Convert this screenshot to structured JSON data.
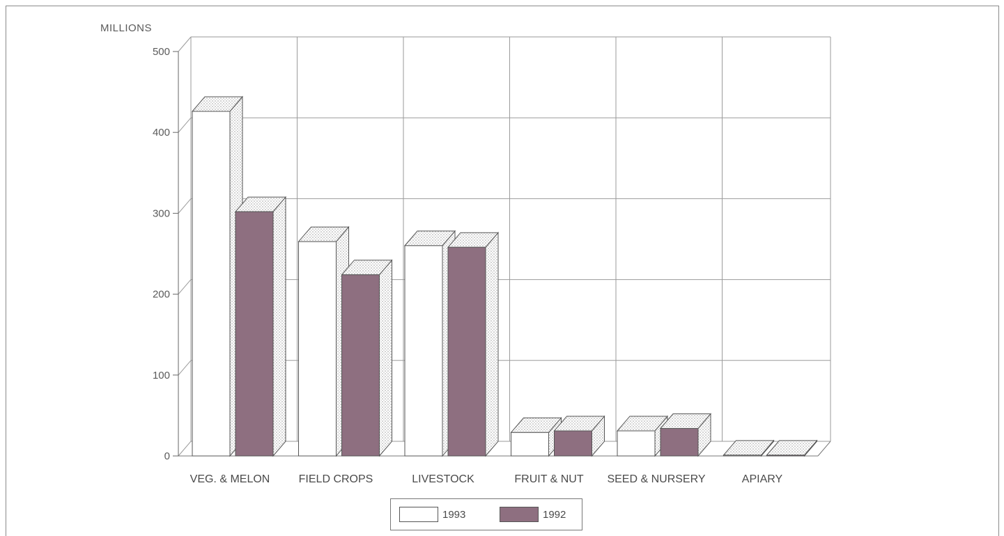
{
  "chart_data": {
    "type": "bar",
    "unit_label": "MILLIONS",
    "categories": [
      "VEG. & MELON",
      "FIELD CROPS",
      "LIVESTOCK",
      "FRUIT & NUT",
      "SEED & NURSERY",
      "APIARY"
    ],
    "series": [
      {
        "name": "1993",
        "values": [
          426,
          265,
          260,
          29,
          31,
          1
        ],
        "color": "#ffffff"
      },
      {
        "name": "1992",
        "values": [
          302,
          224,
          258,
          31,
          34,
          1
        ],
        "color": "#8e6f80"
      }
    ],
    "ylim": [
      0,
      500
    ],
    "yticks": [
      0,
      100,
      200,
      300,
      400,
      500
    ],
    "grid": true,
    "legend_position": "bottom-center",
    "style": "3d-bar"
  }
}
